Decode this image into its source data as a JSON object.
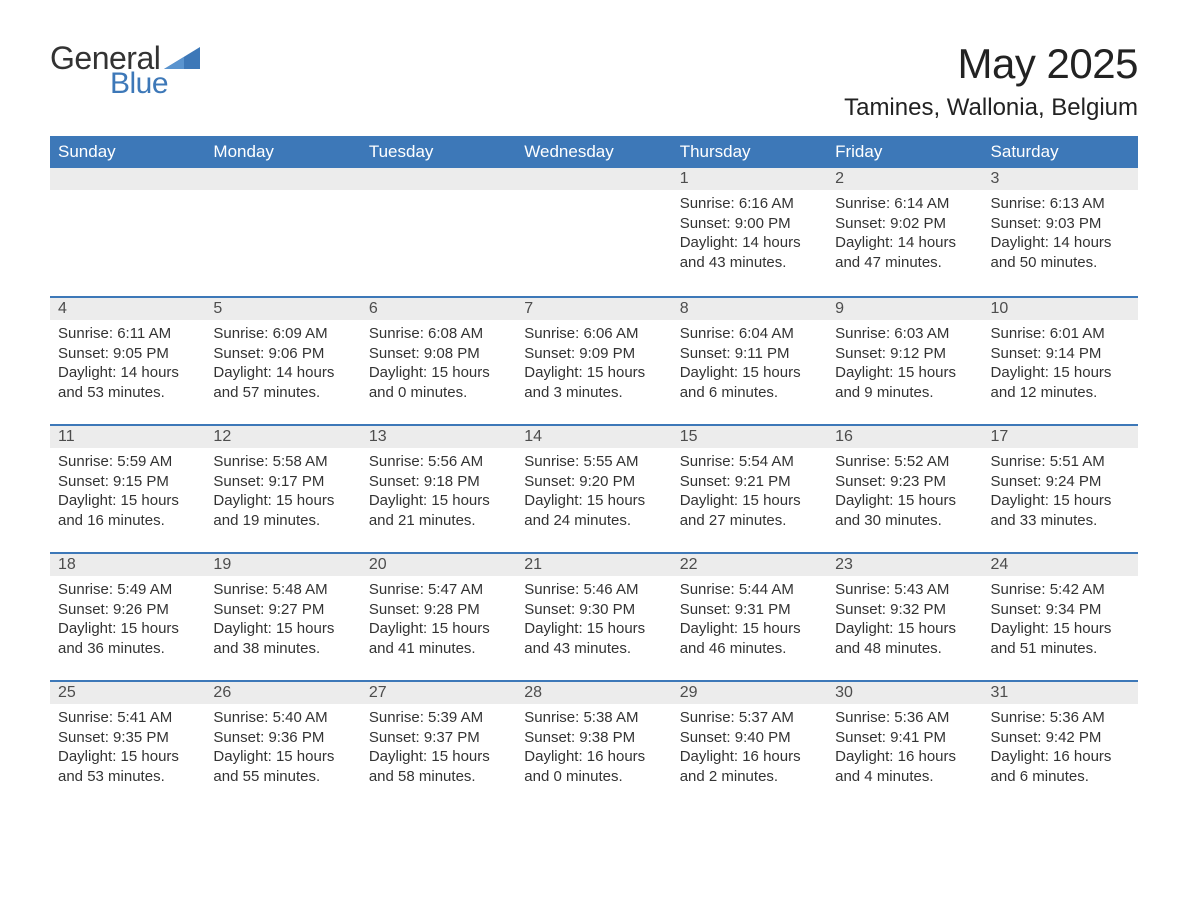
{
  "logo": {
    "text1": "General",
    "text2": "Blue",
    "accent_color": "#3d78b8"
  },
  "title": {
    "month": "May 2025",
    "location": "Tamines, Wallonia, Belgium"
  },
  "colors": {
    "header_bg": "#3d78b8",
    "header_text": "#ffffff",
    "daynum_bg": "#ececec",
    "daynum_text": "#4d4d4d",
    "body_text": "#333333",
    "row_border": "#3d78b8",
    "page_bg": "#ffffff"
  },
  "typography": {
    "month_fontsize": 42,
    "location_fontsize": 24,
    "header_fontsize": 17,
    "daynum_fontsize": 16,
    "body_fontsize": 15
  },
  "layout": {
    "columns": 7,
    "rows": 5,
    "first_day_column_index": 4
  },
  "weekdays": [
    "Sunday",
    "Monday",
    "Tuesday",
    "Wednesday",
    "Thursday",
    "Friday",
    "Saturday"
  ],
  "days": [
    {
      "n": 1,
      "sunrise": "6:16 AM",
      "sunset": "9:00 PM",
      "daylight": "14 hours and 43 minutes."
    },
    {
      "n": 2,
      "sunrise": "6:14 AM",
      "sunset": "9:02 PM",
      "daylight": "14 hours and 47 minutes."
    },
    {
      "n": 3,
      "sunrise": "6:13 AM",
      "sunset": "9:03 PM",
      "daylight": "14 hours and 50 minutes."
    },
    {
      "n": 4,
      "sunrise": "6:11 AM",
      "sunset": "9:05 PM",
      "daylight": "14 hours and 53 minutes."
    },
    {
      "n": 5,
      "sunrise": "6:09 AM",
      "sunset": "9:06 PM",
      "daylight": "14 hours and 57 minutes."
    },
    {
      "n": 6,
      "sunrise": "6:08 AM",
      "sunset": "9:08 PM",
      "daylight": "15 hours and 0 minutes."
    },
    {
      "n": 7,
      "sunrise": "6:06 AM",
      "sunset": "9:09 PM",
      "daylight": "15 hours and 3 minutes."
    },
    {
      "n": 8,
      "sunrise": "6:04 AM",
      "sunset": "9:11 PM",
      "daylight": "15 hours and 6 minutes."
    },
    {
      "n": 9,
      "sunrise": "6:03 AM",
      "sunset": "9:12 PM",
      "daylight": "15 hours and 9 minutes."
    },
    {
      "n": 10,
      "sunrise": "6:01 AM",
      "sunset": "9:14 PM",
      "daylight": "15 hours and 12 minutes."
    },
    {
      "n": 11,
      "sunrise": "5:59 AM",
      "sunset": "9:15 PM",
      "daylight": "15 hours and 16 minutes."
    },
    {
      "n": 12,
      "sunrise": "5:58 AM",
      "sunset": "9:17 PM",
      "daylight": "15 hours and 19 minutes."
    },
    {
      "n": 13,
      "sunrise": "5:56 AM",
      "sunset": "9:18 PM",
      "daylight": "15 hours and 21 minutes."
    },
    {
      "n": 14,
      "sunrise": "5:55 AM",
      "sunset": "9:20 PM",
      "daylight": "15 hours and 24 minutes."
    },
    {
      "n": 15,
      "sunrise": "5:54 AM",
      "sunset": "9:21 PM",
      "daylight": "15 hours and 27 minutes."
    },
    {
      "n": 16,
      "sunrise": "5:52 AM",
      "sunset": "9:23 PM",
      "daylight": "15 hours and 30 minutes."
    },
    {
      "n": 17,
      "sunrise": "5:51 AM",
      "sunset": "9:24 PM",
      "daylight": "15 hours and 33 minutes."
    },
    {
      "n": 18,
      "sunrise": "5:49 AM",
      "sunset": "9:26 PM",
      "daylight": "15 hours and 36 minutes."
    },
    {
      "n": 19,
      "sunrise": "5:48 AM",
      "sunset": "9:27 PM",
      "daylight": "15 hours and 38 minutes."
    },
    {
      "n": 20,
      "sunrise": "5:47 AM",
      "sunset": "9:28 PM",
      "daylight": "15 hours and 41 minutes."
    },
    {
      "n": 21,
      "sunrise": "5:46 AM",
      "sunset": "9:30 PM",
      "daylight": "15 hours and 43 minutes."
    },
    {
      "n": 22,
      "sunrise": "5:44 AM",
      "sunset": "9:31 PM",
      "daylight": "15 hours and 46 minutes."
    },
    {
      "n": 23,
      "sunrise": "5:43 AM",
      "sunset": "9:32 PM",
      "daylight": "15 hours and 48 minutes."
    },
    {
      "n": 24,
      "sunrise": "5:42 AM",
      "sunset": "9:34 PM",
      "daylight": "15 hours and 51 minutes."
    },
    {
      "n": 25,
      "sunrise": "5:41 AM",
      "sunset": "9:35 PM",
      "daylight": "15 hours and 53 minutes."
    },
    {
      "n": 26,
      "sunrise": "5:40 AM",
      "sunset": "9:36 PM",
      "daylight": "15 hours and 55 minutes."
    },
    {
      "n": 27,
      "sunrise": "5:39 AM",
      "sunset": "9:37 PM",
      "daylight": "15 hours and 58 minutes."
    },
    {
      "n": 28,
      "sunrise": "5:38 AM",
      "sunset": "9:38 PM",
      "daylight": "16 hours and 0 minutes."
    },
    {
      "n": 29,
      "sunrise": "5:37 AM",
      "sunset": "9:40 PM",
      "daylight": "16 hours and 2 minutes."
    },
    {
      "n": 30,
      "sunrise": "5:36 AM",
      "sunset": "9:41 PM",
      "daylight": "16 hours and 4 minutes."
    },
    {
      "n": 31,
      "sunrise": "5:36 AM",
      "sunset": "9:42 PM",
      "daylight": "16 hours and 6 minutes."
    }
  ],
  "labels": {
    "sunrise": "Sunrise: ",
    "sunset": "Sunset: ",
    "daylight": "Daylight: "
  }
}
